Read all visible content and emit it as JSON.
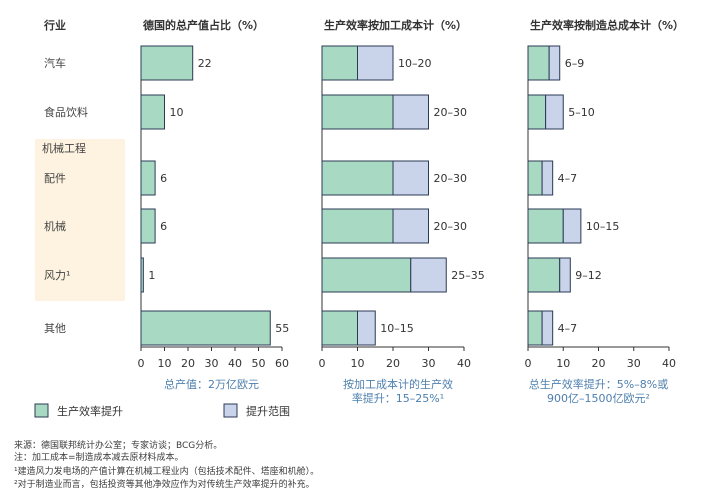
{
  "chart_data": {
    "type": "bar",
    "colors": {
      "gain": "#a8d9c3",
      "range": "#c9d3ea",
      "stroke": "#2b3a55",
      "highlight": "#fdf3e0",
      "annotation": "#4d7fae"
    },
    "header": {
      "industry": "行业"
    },
    "categories": [
      "汽车",
      "食品饮料",
      "配件",
      "机械",
      "风力¹",
      "其他"
    ],
    "group_label": "机械工程",
    "panels": [
      {
        "title": "德国的总产值占比（%）",
        "xlim": [
          0,
          60
        ],
        "ticks": [
          0,
          10,
          20,
          30,
          40,
          50,
          60
        ],
        "values": [
          22,
          10,
          6,
          6,
          1,
          55
        ],
        "value_labels": [
          "22",
          "10",
          "6",
          "6",
          "1",
          "55"
        ],
        "note": "总产值：2万亿欧元"
      },
      {
        "title": "生产效率按加工成本计（%）",
        "xlim": [
          0,
          40
        ],
        "ticks": [
          0,
          10,
          20,
          30,
          40
        ],
        "low": [
          10,
          20,
          20,
          20,
          25,
          10
        ],
        "high": [
          20,
          30,
          30,
          30,
          35,
          15
        ],
        "value_labels": [
          "10–20",
          "20–30",
          "20–30",
          "20–30",
          "25–35",
          "10–15"
        ],
        "note": [
          "按加工成本计的生产效",
          "率提升：15–25%¹"
        ]
      },
      {
        "title": "生产效率按制造总成本计（%）",
        "xlim": [
          0,
          40
        ],
        "ticks": [
          0,
          10,
          20,
          30,
          40
        ],
        "low": [
          6,
          5,
          4,
          10,
          9,
          4
        ],
        "high": [
          9,
          10,
          7,
          15,
          12,
          7
        ],
        "value_labels": [
          "6–9",
          "5–10",
          "4–7",
          "10–15",
          "9–12",
          "4–7"
        ],
        "note": [
          "总生产效率提升：5%–8%或",
          "900亿–1500亿欧元²"
        ]
      }
    ],
    "legend": [
      {
        "label": "生产效率提升",
        "key": "gain"
      },
      {
        "label": "提升范围",
        "key": "range"
      }
    ]
  },
  "footnotes": [
    "来源：德国联邦统计办公室；专家访谈；BCG分析。",
    "注：加工成本=制造成本减去原材料成本。",
    "¹建造风力发电场的产值计算在机械工程业内（包括技术配件、塔座和机舱）。",
    "²对于制造业而言，包括投资等其他净效应作为对传统生产效率提升的补充。"
  ]
}
